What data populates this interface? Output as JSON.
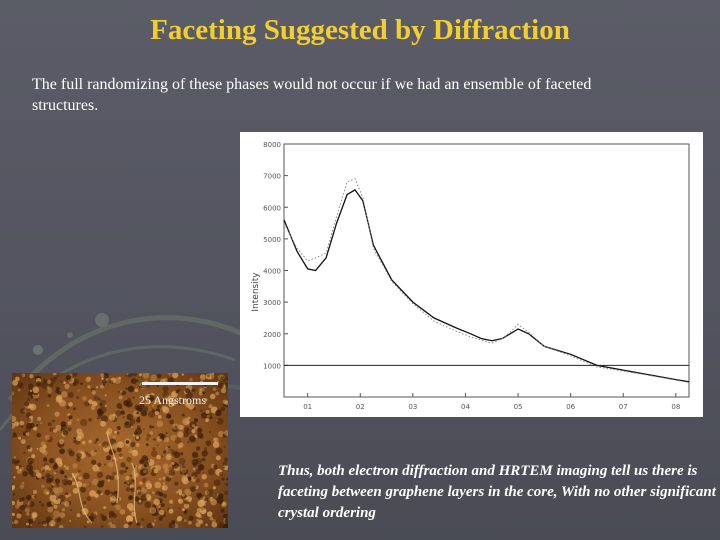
{
  "slide": {
    "title": "Faceting Suggested by Diffraction",
    "intro": "The full randomizing of these phases would not occur if we had an ensemble of faceted structures.",
    "image_scale_label": "25 Angstroms",
    "conclusion": "Thus, both electron diffraction and HRTEM imaging tell us there is faceting between graphene layers in the core, With no other significant crystal ordering"
  },
  "colors": {
    "title": "#f2cf2f",
    "background": "#55565f",
    "text": "#ffffff"
  },
  "chart_data": {
    "type": "line",
    "ylabel": "Intensity",
    "ylim": [
      0,
      8000
    ],
    "y_ticks": [
      "1000",
      "2000",
      "3000",
      "4000",
      "5000",
      "6000",
      "7000",
      "8000"
    ],
    "x_ticks": [
      "01",
      "02",
      "03",
      "04",
      "05",
      "06",
      "07",
      "08"
    ],
    "x_tick_pos": [
      0,
      1,
      2,
      3,
      4,
      5,
      6,
      7
    ],
    "xlim": [
      -0.45,
      7.25
    ],
    "reference_line_y": 1000,
    "series": [
      {
        "style": "solid",
        "x": [
          -0.45,
          -0.2,
          0,
          0.15,
          0.35,
          0.55,
          0.75,
          0.9,
          1.05,
          1.25,
          1.6,
          2.0,
          2.4,
          2.8,
          3.1,
          3.3,
          3.5,
          3.7,
          3.85,
          4.0,
          4.2,
          4.5,
          5.0,
          5.5,
          6.0,
          6.5,
          7.0,
          7.25
        ],
        "y": [
          5600,
          4600,
          4050,
          4000,
          4400,
          5500,
          6400,
          6550,
          6200,
          4800,
          3700,
          3000,
          2500,
          2200,
          2000,
          1850,
          1780,
          1850,
          2000,
          2150,
          2000,
          1600,
          1350,
          1000,
          850,
          700,
          550,
          480
        ]
      },
      {
        "style": "dotted",
        "x": [
          -0.45,
          -0.2,
          0,
          0.15,
          0.35,
          0.55,
          0.75,
          0.9,
          1.05,
          1.25,
          1.6,
          2.0,
          2.4,
          2.8,
          3.1,
          3.3,
          3.5,
          3.7,
          3.85,
          4.0,
          4.2,
          4.5,
          5.0,
          5.5,
          6.0,
          6.5,
          7.0,
          7.25
        ],
        "y": [
          5500,
          4700,
          4300,
          4400,
          4550,
          5700,
          6800,
          6900,
          6300,
          4700,
          3650,
          2950,
          2400,
          2100,
          1900,
          1800,
          1700,
          1850,
          2050,
          2300,
          2050,
          1600,
          1300,
          950,
          820,
          680,
          530,
          460
        ]
      }
    ]
  }
}
